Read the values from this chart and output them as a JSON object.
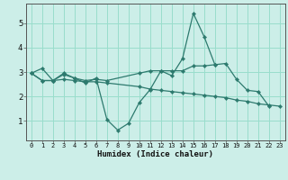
{
  "xlabel": "Humidex (Indice chaleur)",
  "bg_color": "#cceee8",
  "grid_color": "#99ddcc",
  "line_color": "#2d7a6e",
  "xlim": [
    -0.5,
    23.5
  ],
  "ylim": [
    0.2,
    5.8
  ],
  "yticks": [
    1,
    2,
    3,
    4,
    5
  ],
  "xticks": [
    0,
    1,
    2,
    3,
    4,
    5,
    6,
    7,
    8,
    9,
    10,
    11,
    12,
    13,
    14,
    15,
    16,
    17,
    18,
    19,
    20,
    21,
    22,
    23
  ],
  "line1_x": [
    0,
    1,
    2,
    3,
    4,
    5,
    6,
    7,
    8,
    9,
    10,
    11,
    12,
    13,
    14,
    15,
    16,
    17,
    18,
    19,
    20,
    21,
    22
  ],
  "line1_y": [
    2.95,
    3.15,
    2.65,
    2.95,
    2.75,
    2.55,
    2.75,
    1.05,
    0.62,
    0.9,
    1.75,
    2.28,
    3.05,
    2.85,
    3.55,
    5.4,
    4.45,
    3.3,
    3.35,
    2.7,
    2.25,
    2.2,
    1.6
  ],
  "line2_x": [
    0,
    1,
    2,
    3,
    4,
    5,
    6,
    7,
    10,
    11,
    12,
    13,
    14,
    15,
    16,
    17
  ],
  "line2_y": [
    2.95,
    2.65,
    2.65,
    2.9,
    2.75,
    2.65,
    2.7,
    2.65,
    2.95,
    3.05,
    3.05,
    3.05,
    3.05,
    3.25,
    3.25,
    3.3
  ],
  "line3_x": [
    0,
    1,
    2,
    3,
    4,
    5,
    6,
    7,
    10,
    11,
    12,
    13,
    14,
    15,
    16,
    17,
    18,
    19,
    20,
    21,
    22,
    23
  ],
  "line3_y": [
    2.95,
    2.65,
    2.65,
    2.7,
    2.65,
    2.6,
    2.6,
    2.55,
    2.4,
    2.3,
    2.25,
    2.2,
    2.15,
    2.1,
    2.05,
    2.0,
    1.95,
    1.85,
    1.8,
    1.7,
    1.65,
    1.6
  ]
}
